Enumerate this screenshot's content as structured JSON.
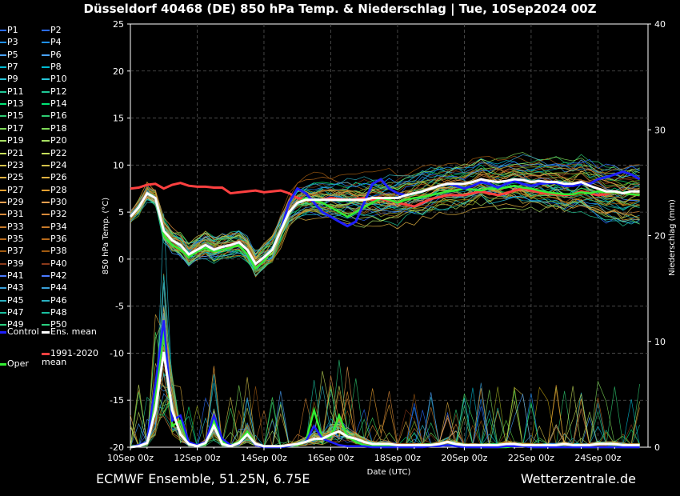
{
  "title": "Düsseldorf 40468 (DE)  850 hPa Temp. & Niederschlag | Tue, 10Sep2024 00Z",
  "footer_left": "ECMWF Ensemble, 51.25N, 6.75E",
  "footer_right": "Wetterzentrale.de",
  "legend": {
    "members": [
      "P1",
      "P2",
      "P3",
      "P4",
      "P5",
      "P6",
      "P7",
      "P8",
      "P9",
      "P10",
      "P11",
      "P12",
      "P13",
      "P14",
      "P15",
      "P16",
      "P17",
      "P18",
      "P19",
      "P20",
      "P21",
      "P22",
      "P23",
      "P24",
      "P25",
      "P26",
      "P27",
      "P28",
      "P29",
      "P30",
      "P31",
      "P32",
      "P33",
      "P34",
      "P35",
      "P36",
      "P37",
      "P38",
      "P39",
      "P40",
      "P41",
      "P42",
      "P43",
      "P44",
      "P45",
      "P46",
      "P47",
      "P48",
      "P49",
      "P50"
    ],
    "control": "Control",
    "ens_mean": "Ens. mean",
    "clim_mean": "1991-2020 mean",
    "oper": "Oper"
  },
  "colors": {
    "control": "#1f1fff",
    "ens_mean": "#ffffff",
    "clim_mean": "#ff4040",
    "oper": "#33ee33",
    "members": [
      "#2b6cff",
      "#1e90ff",
      "#4aa3ff",
      "#00bcd4",
      "#26c6da",
      "#20c997",
      "#00e676",
      "#2ecc71",
      "#7ed957",
      "#a8e063",
      "#c6e05a",
      "#d4c24a",
      "#e0b040",
      "#e8a030",
      "#f0a050",
      "#d98a3a",
      "#c87a2a",
      "#b86a1a",
      "#a05a10",
      "#8b3a1a",
      "#4a7aff",
      "#3a9fd8",
      "#2ab0c0",
      "#1ac0a0",
      "#2ad080",
      "#40e060",
      "#60d040",
      "#80c030",
      "#a0b020",
      "#c0a010"
    ]
  },
  "chart_data": {
    "type": "line",
    "xlabel": "Date (UTC)",
    "ylabel": "850 hPa Temp. (°C)",
    "y2label": "Niederschlag (mm)",
    "x_range": [
      "2024-09-10T00",
      "2024-09-25T12"
    ],
    "x_ticks": [
      "10Sep 00z",
      "12Sep 00z",
      "14Sep 00z",
      "16Sep 00z",
      "18Sep 00z",
      "20Sep 00z",
      "22Sep 00z",
      "24Sep 00z"
    ],
    "ylim": [
      -20,
      25
    ],
    "y_ticks": [
      -20,
      -15,
      -10,
      -5,
      0,
      5,
      10,
      15,
      20,
      25
    ],
    "y2lim": [
      0,
      40
    ],
    "y2_ticks": [
      0,
      10,
      20,
      30,
      40
    ],
    "grid": true,
    "time_step_hours": 6,
    "temperature": {
      "ens_mean": [
        4.5,
        5.5,
        7,
        6.5,
        3,
        2,
        1.5,
        0.5,
        1,
        1.5,
        1,
        1.3,
        1.5,
        1.8,
        1,
        -0.5,
        0.2,
        1,
        3,
        5,
        6,
        6.3,
        6.3,
        6.3,
        6.3,
        6.3,
        6.3,
        6.3,
        6.3,
        6.5,
        6.5,
        6.5,
        6.5,
        6.8,
        7,
        7.2,
        7.5,
        7.8,
        8,
        8,
        8,
        8.2,
        8.5,
        8.3,
        8.2,
        8.3,
        8.5,
        8.4,
        8.2,
        8.3,
        8.2,
        8.2,
        8,
        8,
        8.2,
        7.8,
        7.5,
        7.2,
        7.2,
        7,
        7.2,
        7.2
      ],
      "control": [
        4.5,
        5.5,
        7,
        6.5,
        3,
        2,
        1.5,
        0.5,
        1,
        1.5,
        1,
        1.3,
        1.5,
        1.8,
        1,
        -0.5,
        0.2,
        1,
        3,
        6,
        7.5,
        7,
        6,
        5,
        4.5,
        4,
        3.5,
        4,
        6,
        8,
        8.5,
        7.5,
        7,
        6.8,
        7,
        7.2,
        7.5,
        7.8,
        8,
        7.8,
        7.5,
        7.8,
        8.2,
        8,
        7.6,
        8,
        8.3,
        8,
        7.8,
        8,
        8.1,
        8.1,
        7.8,
        7.8,
        8,
        8,
        8.5,
        8.7,
        9,
        9.3,
        9,
        8.5
      ],
      "oper": [
        4.5,
        5.5,
        7,
        6.5,
        2.5,
        1.5,
        1,
        0.2,
        0.8,
        1.2,
        0.8,
        1,
        1.2,
        1.5,
        0.5,
        -1,
        -0.2,
        1,
        3,
        5,
        6,
        6.5,
        6.2,
        6,
        5.5,
        5,
        4.5,
        5,
        5.5,
        6,
        6.5,
        6.3,
        6,
        6.3,
        6.5,
        6.6,
        6.8,
        7,
        7.2,
        7.3,
        7.5,
        7.4,
        7.3,
        7.5,
        7.5,
        7.6,
        7.8,
        7.6,
        7.5,
        7.3,
        7.1,
        7,
        6.9,
        6.9,
        7.1,
        7,
        7.2,
        7.1,
        7.1,
        7,
        6.9,
        6.8
      ],
      "clim_mean": [
        7.5,
        7.6,
        7.9,
        8,
        7.5,
        7.9,
        8.1,
        7.8,
        7.7,
        7.7,
        7.6,
        7.6,
        7,
        7.1,
        7.2,
        7.3,
        7.1,
        7.2,
        7.3,
        7,
        6.5,
        6.3,
        6.2,
        6.3,
        6.5,
        6.4,
        6.3,
        6.4,
        6.5,
        6.3,
        6.4,
        6.2,
        6,
        5.8,
        5.6,
        6,
        6.4,
        6.6,
        6.8,
        6.8,
        6.8,
        7,
        7.2,
        7,
        6.8,
        7,
        7.3,
        7.5,
        7.3,
        7.1,
        7,
        6.9,
        6.8,
        6.9,
        7.2,
        7,
        6.8,
        6.9,
        7.2,
        7,
        6.9,
        6.8
      ]
    },
    "precipitation_mm": {
      "ens_mean": [
        0,
        0.1,
        0.4,
        3.5,
        9,
        3.5,
        1.2,
        0.3,
        0.1,
        0.4,
        2,
        0.3,
        0.1,
        0.4,
        1.2,
        0.3,
        0.1,
        0.1,
        0.1,
        0.2,
        0.3,
        0.5,
        0.8,
        0.8,
        1.2,
        1.5,
        1,
        0.8,
        0.5,
        0.3,
        0.3,
        0.3,
        0.2,
        0.2,
        0.2,
        0.2,
        0.2,
        0.3,
        0.5,
        0.3,
        0.2,
        0.2,
        0.2,
        0.2,
        0.2,
        0.3,
        0.3,
        0.2,
        0.2,
        0.2,
        0.2,
        0.2,
        0.3,
        0.2,
        0.2,
        0.2,
        0.3,
        0.3,
        0.3,
        0.2,
        0.2,
        0.2
      ],
      "control": [
        0,
        0.2,
        0.5,
        6,
        12,
        2.5,
        3,
        0.5,
        0.2,
        0.5,
        3,
        0.8,
        0.2,
        0.3,
        1.2,
        0.2,
        0,
        0,
        0,
        0.1,
        0.3,
        0.5,
        2,
        0.8,
        0.5,
        0.2,
        0.1,
        0.1,
        0.1,
        0,
        0,
        0,
        0,
        0,
        0,
        0,
        0.1,
        0.1,
        0.2,
        0.1,
        0,
        0,
        0,
        0,
        0,
        0.1,
        0.1,
        0.1,
        0,
        0,
        0,
        0,
        0,
        0,
        0,
        0,
        0,
        0,
        0,
        0,
        0,
        0
      ],
      "oper": [
        0,
        0.2,
        0.5,
        5,
        11,
        2,
        2.5,
        0.3,
        0.1,
        0.3,
        2.5,
        0.5,
        0.2,
        0.5,
        1.5,
        0.3,
        0,
        0,
        0,
        0.1,
        0.2,
        0.5,
        3.5,
        0.8,
        1,
        3,
        1,
        0.5,
        0.2,
        0.1,
        0.1,
        0.1,
        0,
        0,
        0,
        0.1,
        0.1,
        0.1,
        0.2,
        0.1,
        0,
        0,
        0,
        0,
        0,
        0,
        0.1,
        0.1,
        0,
        0,
        0,
        0,
        0,
        0,
        0,
        0,
        0,
        0,
        0,
        0,
        0,
        0
      ]
    }
  }
}
